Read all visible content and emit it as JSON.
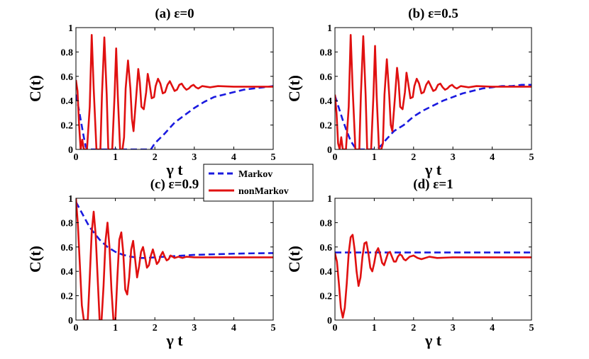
{
  "chart_data": [
    {
      "type": "line",
      "title": "(a) ε=0",
      "xlabel": "γ t",
      "ylabel": "C(t)",
      "xlim": [
        0,
        5
      ],
      "ylim": [
        0,
        1
      ],
      "xticks": [
        "0",
        "1",
        "2",
        "3",
        "4",
        "5"
      ],
      "yticks": [
        "0",
        "0.2",
        "0.4",
        "0.6",
        "0.8",
        "1"
      ],
      "series": [
        {
          "name": "Markov",
          "style": "dashed",
          "color": "#1a1adf",
          "x": [
            0,
            0.05,
            0.1,
            0.15,
            0.2,
            0.25,
            0.3,
            0.5,
            1.0,
            1.5,
            1.9,
            2.0,
            2.25,
            2.5,
            2.75,
            3.0,
            3.25,
            3.5,
            3.75,
            4.0,
            4.25,
            4.5,
            4.75,
            5.0
          ],
          "y": [
            0.45,
            0.37,
            0.28,
            0.19,
            0.1,
            0.02,
            0,
            0,
            0,
            0,
            0,
            0.05,
            0.13,
            0.22,
            0.28,
            0.34,
            0.39,
            0.43,
            0.45,
            0.47,
            0.49,
            0.5,
            0.51,
            0.52
          ]
        },
        {
          "name": "nonMarkov",
          "style": "solid",
          "color": "#e01010",
          "x": [
            0,
            0.04,
            0.08,
            0.12,
            0.16,
            0.2,
            0.24,
            0.28,
            0.35,
            0.4,
            0.45,
            0.52,
            0.58,
            0.62,
            0.66,
            0.72,
            0.78,
            0.82,
            0.86,
            0.92,
            0.98,
            1.02,
            1.06,
            1.12,
            1.18,
            1.22,
            1.26,
            1.32,
            1.38,
            1.42,
            1.46,
            1.52,
            1.58,
            1.62,
            1.66,
            1.72,
            1.78,
            1.82,
            1.86,
            1.92,
            1.98,
            2.02,
            2.08,
            2.14,
            2.2,
            2.26,
            2.32,
            2.38,
            2.44,
            2.5,
            2.56,
            2.62,
            2.68,
            2.74,
            2.8,
            2.86,
            2.92,
            2.98,
            3.04,
            3.1,
            3.2,
            3.4,
            3.6,
            4.0,
            5.0
          ],
          "y": [
            0.57,
            0.48,
            0.2,
            0,
            0.08,
            0,
            0,
            0,
            0.35,
            0.94,
            0.5,
            0,
            0,
            0,
            0.45,
            0.92,
            0.45,
            0,
            0,
            0,
            0.45,
            0.83,
            0.45,
            0,
            0,
            0.1,
            0.5,
            0.73,
            0.5,
            0.25,
            0.15,
            0.4,
            0.66,
            0.55,
            0.35,
            0.33,
            0.47,
            0.62,
            0.55,
            0.42,
            0.43,
            0.52,
            0.58,
            0.54,
            0.46,
            0.47,
            0.53,
            0.56,
            0.52,
            0.48,
            0.49,
            0.53,
            0.54,
            0.51,
            0.49,
            0.5,
            0.52,
            0.53,
            0.51,
            0.5,
            0.52,
            0.51,
            0.52,
            0.515,
            0.515
          ]
        }
      ]
    },
    {
      "type": "line",
      "title": "(b) ε=0.5",
      "xlabel": "γ t",
      "ylabel": "C(t)",
      "xlim": [
        0,
        5
      ],
      "ylim": [
        0,
        1
      ],
      "xticks": [
        "0",
        "1",
        "2",
        "3",
        "4",
        "5"
      ],
      "yticks": [
        "0",
        "0.2",
        "0.4",
        "0.6",
        "0.8",
        "1"
      ],
      "series": [
        {
          "name": "Markov",
          "style": "dashed",
          "color": "#1a1adf",
          "x": [
            0,
            0.1,
            0.2,
            0.3,
            0.4,
            0.5,
            0.6,
            0.7,
            0.8,
            0.9,
            1.0,
            1.1,
            1.2,
            1.3,
            1.5,
            1.75,
            2.0,
            2.25,
            2.5,
            2.75,
            3.0,
            3.25,
            3.5,
            3.75,
            4.0,
            4.25,
            4.5,
            4.75,
            5.0
          ],
          "y": [
            0.44,
            0.34,
            0.24,
            0.15,
            0.07,
            0.02,
            0,
            0,
            0,
            0,
            0,
            0.01,
            0.04,
            0.08,
            0.15,
            0.2,
            0.27,
            0.32,
            0.36,
            0.4,
            0.43,
            0.46,
            0.48,
            0.5,
            0.51,
            0.52,
            0.52,
            0.53,
            0.53
          ]
        },
        {
          "name": "nonMarkov",
          "style": "solid",
          "color": "#e01010",
          "x": [
            0,
            0.04,
            0.08,
            0.12,
            0.16,
            0.2,
            0.24,
            0.28,
            0.35,
            0.4,
            0.45,
            0.52,
            0.58,
            0.62,
            0.66,
            0.72,
            0.78,
            0.82,
            0.86,
            0.92,
            0.98,
            1.02,
            1.06,
            1.12,
            1.18,
            1.22,
            1.26,
            1.32,
            1.38,
            1.42,
            1.46,
            1.52,
            1.58,
            1.62,
            1.66,
            1.72,
            1.78,
            1.82,
            1.86,
            1.92,
            1.98,
            2.02,
            2.08,
            2.14,
            2.2,
            2.26,
            2.32,
            2.38,
            2.44,
            2.5,
            2.56,
            2.62,
            2.68,
            2.74,
            2.8,
            2.86,
            2.92,
            2.98,
            3.04,
            3.1,
            3.2,
            3.4,
            3.6,
            4.0,
            5.0
          ],
          "y": [
            0.45,
            0.3,
            0.05,
            0,
            0.1,
            0,
            0,
            0,
            0.35,
            0.94,
            0.5,
            0,
            0,
            0,
            0.45,
            0.93,
            0.45,
            0,
            0,
            0,
            0.45,
            0.85,
            0.45,
            0,
            0,
            0.05,
            0.45,
            0.74,
            0.45,
            0.2,
            0.15,
            0.4,
            0.67,
            0.55,
            0.35,
            0.33,
            0.47,
            0.63,
            0.55,
            0.42,
            0.43,
            0.52,
            0.58,
            0.54,
            0.46,
            0.47,
            0.53,
            0.56,
            0.52,
            0.48,
            0.49,
            0.53,
            0.54,
            0.51,
            0.49,
            0.5,
            0.52,
            0.53,
            0.51,
            0.5,
            0.52,
            0.51,
            0.52,
            0.515,
            0.515
          ]
        }
      ]
    },
    {
      "type": "line",
      "title": "(c) ε=0.9",
      "xlabel": "γ t",
      "ylabel": "C(t)",
      "xlim": [
        0,
        5
      ],
      "ylim": [
        0,
        1
      ],
      "xticks": [
        "0",
        "1",
        "2",
        "3",
        "4",
        "5"
      ],
      "yticks": [
        "0",
        "0.2",
        "0.4",
        "0.6",
        "0.8",
        "1"
      ],
      "series": [
        {
          "name": "Markov",
          "style": "dashed",
          "color": "#1a1adf",
          "x": [
            0,
            0.1,
            0.2,
            0.3,
            0.4,
            0.5,
            0.6,
            0.7,
            0.8,
            0.9,
            1.0,
            1.2,
            1.4,
            1.6,
            1.8,
            2.0,
            2.5,
            3.0,
            3.5,
            4.0,
            4.5,
            5.0
          ],
          "y": [
            0.97,
            0.91,
            0.85,
            0.79,
            0.74,
            0.7,
            0.66,
            0.63,
            0.6,
            0.58,
            0.56,
            0.535,
            0.52,
            0.51,
            0.51,
            0.515,
            0.525,
            0.535,
            0.54,
            0.545,
            0.548,
            0.55
          ]
        },
        {
          "name": "nonMarkov",
          "style": "solid",
          "color": "#e01010",
          "x": [
            0,
            0.05,
            0.1,
            0.15,
            0.2,
            0.22,
            0.3,
            0.35,
            0.4,
            0.45,
            0.5,
            0.55,
            0.6,
            0.65,
            0.7,
            0.75,
            0.8,
            0.85,
            0.9,
            0.95,
            1.0,
            1.05,
            1.1,
            1.15,
            1.2,
            1.25,
            1.3,
            1.35,
            1.4,
            1.45,
            1.5,
            1.55,
            1.6,
            1.65,
            1.7,
            1.75,
            1.8,
            1.85,
            1.9,
            1.95,
            2.0,
            2.05,
            2.1,
            2.15,
            2.2,
            2.25,
            2.3,
            2.35,
            2.4,
            2.5,
            2.6,
            2.7,
            2.8,
            3.0,
            5.0
          ],
          "y": [
            1.0,
            0.78,
            0.45,
            0.12,
            0,
            0,
            0,
            0.35,
            0.72,
            0.89,
            0.7,
            0.35,
            0,
            0,
            0.28,
            0.65,
            0.8,
            0.6,
            0.25,
            0,
            0,
            0.35,
            0.66,
            0.72,
            0.55,
            0.25,
            0.21,
            0.35,
            0.58,
            0.65,
            0.5,
            0.35,
            0.44,
            0.56,
            0.6,
            0.52,
            0.43,
            0.45,
            0.53,
            0.58,
            0.52,
            0.46,
            0.48,
            0.53,
            0.56,
            0.52,
            0.49,
            0.5,
            0.53,
            0.51,
            0.52,
            0.51,
            0.52,
            0.515,
            0.515
          ]
        }
      ]
    },
    {
      "type": "line",
      "title": "(d) ε=1",
      "xlabel": "γ t",
      "ylabel": "C(t)",
      "xlim": [
        0,
        5
      ],
      "ylim": [
        0,
        1
      ],
      "xticks": [
        "0",
        "1",
        "2",
        "3",
        "4",
        "5"
      ],
      "yticks": [
        "0",
        "0.2",
        "0.4",
        "0.6",
        "0.8",
        "1"
      ],
      "series": [
        {
          "name": "Markov",
          "style": "dashed",
          "color": "#1a1adf",
          "x": [
            0,
            5.0
          ],
          "y": [
            0.555,
            0.555
          ]
        },
        {
          "name": "nonMarkov",
          "style": "solid",
          "color": "#e01010",
          "x": [
            0,
            0.05,
            0.1,
            0.15,
            0.2,
            0.25,
            0.3,
            0.35,
            0.4,
            0.45,
            0.5,
            0.55,
            0.6,
            0.65,
            0.7,
            0.75,
            0.8,
            0.85,
            0.9,
            0.95,
            1.0,
            1.05,
            1.1,
            1.15,
            1.2,
            1.25,
            1.3,
            1.35,
            1.4,
            1.45,
            1.5,
            1.55,
            1.6,
            1.65,
            1.7,
            1.75,
            1.8,
            1.9,
            2.0,
            2.1,
            2.2,
            2.4,
            2.6,
            3.0,
            5.0
          ],
          "y": [
            0.55,
            0.48,
            0.3,
            0.1,
            0.02,
            0.1,
            0.3,
            0.55,
            0.68,
            0.7,
            0.58,
            0.4,
            0.28,
            0.35,
            0.52,
            0.63,
            0.64,
            0.55,
            0.43,
            0.4,
            0.47,
            0.56,
            0.59,
            0.54,
            0.47,
            0.45,
            0.5,
            0.55,
            0.56,
            0.52,
            0.48,
            0.48,
            0.52,
            0.54,
            0.53,
            0.5,
            0.49,
            0.52,
            0.53,
            0.51,
            0.5,
            0.52,
            0.51,
            0.515,
            0.515
          ]
        }
      ]
    }
  ],
  "legend": {
    "items": [
      {
        "label": "Markov",
        "color": "#1a1adf",
        "style": "dashed"
      },
      {
        "label": "nonMarkov",
        "color": "#e01010",
        "style": "solid"
      }
    ]
  }
}
